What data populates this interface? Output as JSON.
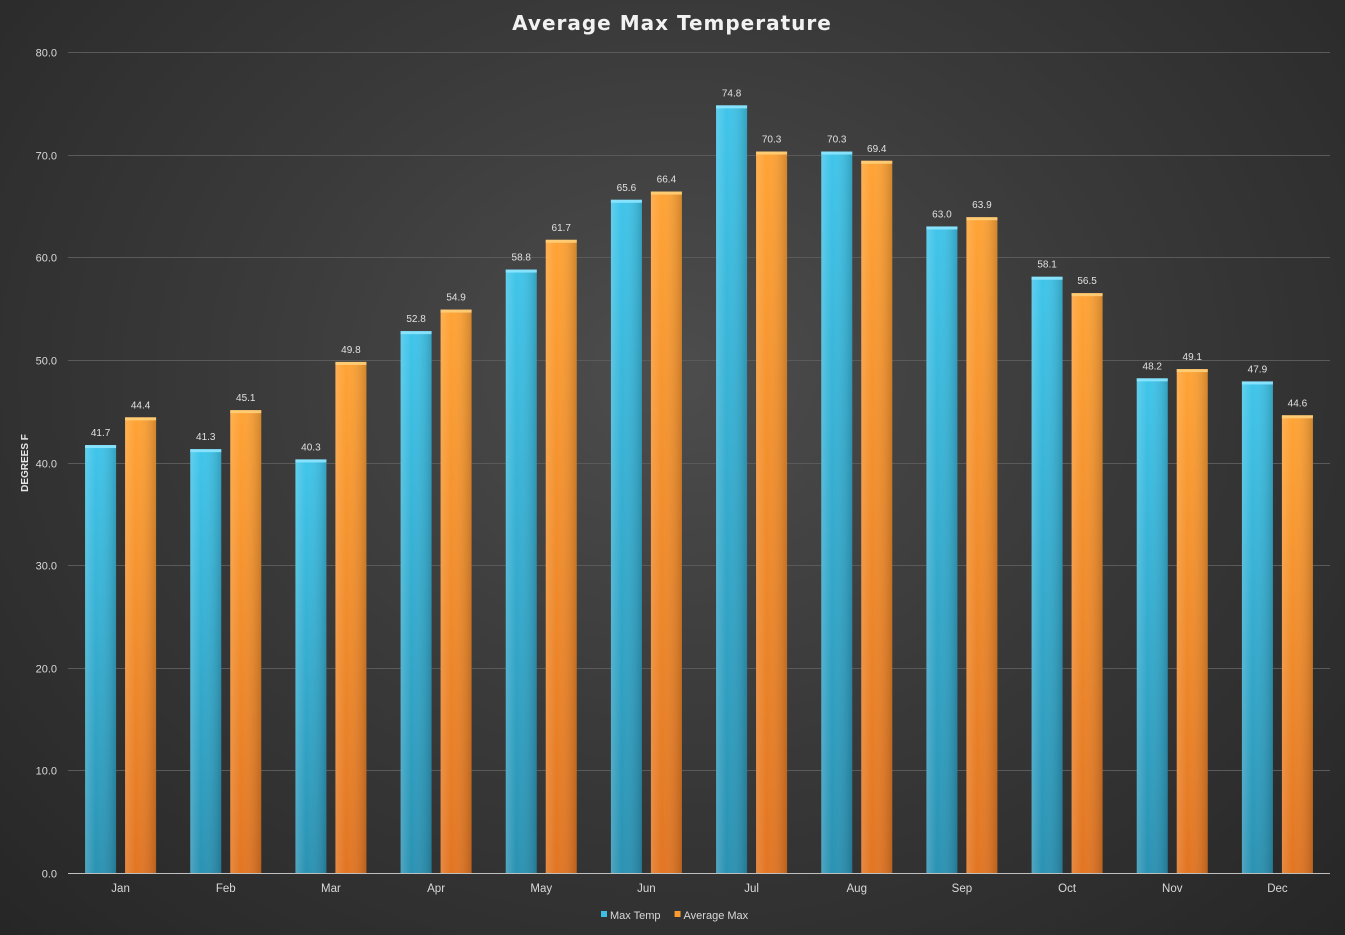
{
  "chart_data": {
    "type": "bar",
    "title": "Average Max Temperature",
    "xlabel": "",
    "ylabel": "DEGREES F",
    "ylim": [
      0,
      80
    ],
    "yticks": [
      "0.0",
      "10.0",
      "20.0",
      "30.0",
      "40.0",
      "50.0",
      "60.0",
      "70.0",
      "80.0"
    ],
    "grid": true,
    "legend_position": "bottom",
    "categories": [
      "Jan",
      "Feb",
      "Mar",
      "Apr",
      "May",
      "Jun",
      "Jul",
      "Aug",
      "Sep",
      "Oct",
      "Nov",
      "Dec"
    ],
    "series": [
      {
        "name": "Max Temp",
        "color": "#3bbfe3",
        "values": [
          41.7,
          41.3,
          40.3,
          52.8,
          58.8,
          65.6,
          74.8,
          70.3,
          63.0,
          58.1,
          48.2,
          47.9
        ],
        "labels": [
          "41.7",
          "41.3",
          "40.3",
          "52.8",
          "58.8",
          "65.6",
          "74.8",
          "70.3",
          "63.0",
          "58.1",
          "48.2",
          "47.9"
        ]
      },
      {
        "name": "Average Max",
        "color": "#fb9a2e",
        "values": [
          44.4,
          45.1,
          49.8,
          54.9,
          61.7,
          66.4,
          70.3,
          69.4,
          63.9,
          56.5,
          49.1,
          44.6
        ],
        "labels": [
          "44.4",
          "45.1",
          "49.8",
          "54.9",
          "61.7",
          "66.4",
          "70.3",
          "69.4",
          "63.9",
          "56.5",
          "49.1",
          "44.6"
        ]
      }
    ]
  }
}
